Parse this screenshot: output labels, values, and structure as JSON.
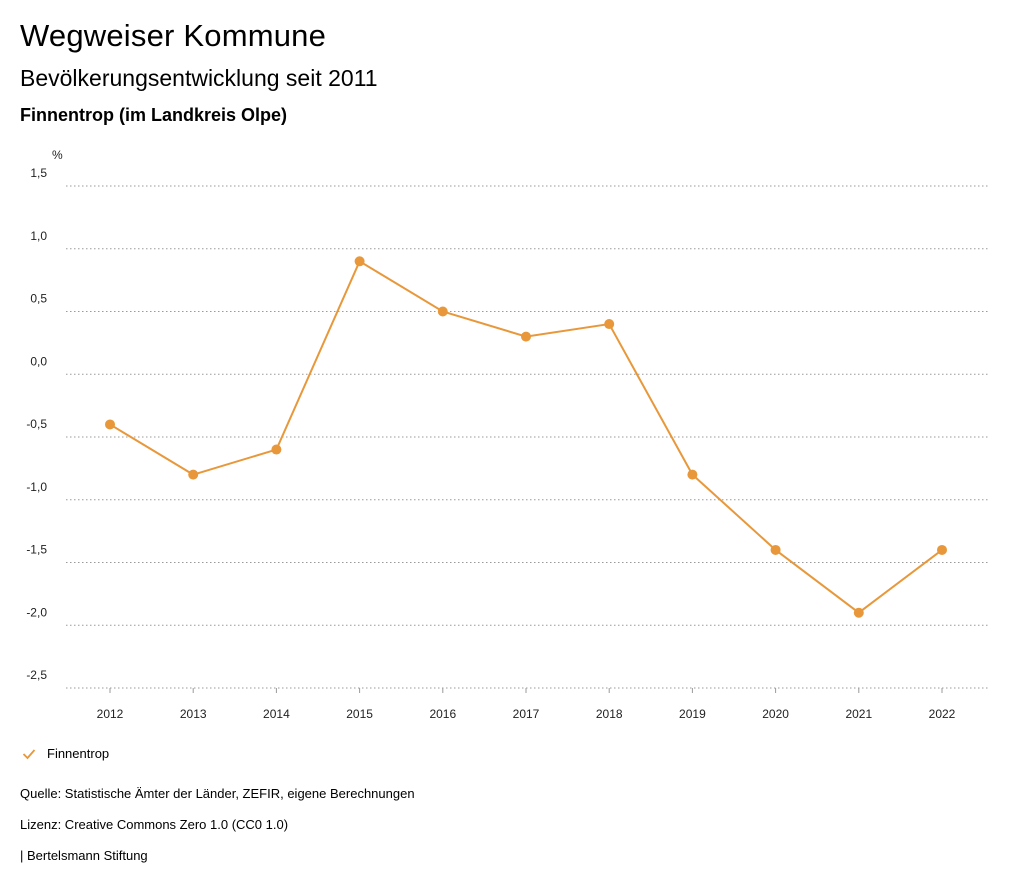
{
  "header": {
    "title": "Wegweiser Kommune",
    "subtitle": "Bevölkerungsentwicklung seit 2011",
    "location": "Finnentrop (im Landkreis Olpe)"
  },
  "chart_data": {
    "type": "line",
    "ylabel": "%",
    "xlabel": "",
    "ylim": [
      -2.5,
      1.5
    ],
    "yticks": [
      1.5,
      1.0,
      0.5,
      0.0,
      -0.5,
      -1.0,
      -1.5,
      -2.0,
      -2.5
    ],
    "ytick_labels": [
      "1,5",
      "1,0",
      "0,5",
      "0,0",
      "-0,5",
      "-1,0",
      "-1,5",
      "-2,0",
      "-2,5"
    ],
    "categories": [
      "2012",
      "2013",
      "2014",
      "2015",
      "2016",
      "2017",
      "2018",
      "2019",
      "2020",
      "2021",
      "2022"
    ],
    "series": [
      {
        "name": "Finnentrop",
        "color": "#e8983a",
        "values": [
          -0.4,
          -0.8,
          -0.6,
          0.9,
          0.5,
          0.3,
          0.4,
          -0.8,
          -1.4,
          -1.9,
          -1.4
        ]
      }
    ],
    "grid": true,
    "legend": "bottom-left"
  },
  "legend": {
    "label": "Finnentrop",
    "icon": "check-icon"
  },
  "footer": {
    "source": "Quelle: Statistische Ämter der Länder, ZEFIR, eigene Berechnungen",
    "license": "Lizenz: Creative Commons Zero 1.0 (CC0 1.0)",
    "publisher": "| Bertelsmann Stiftung"
  }
}
